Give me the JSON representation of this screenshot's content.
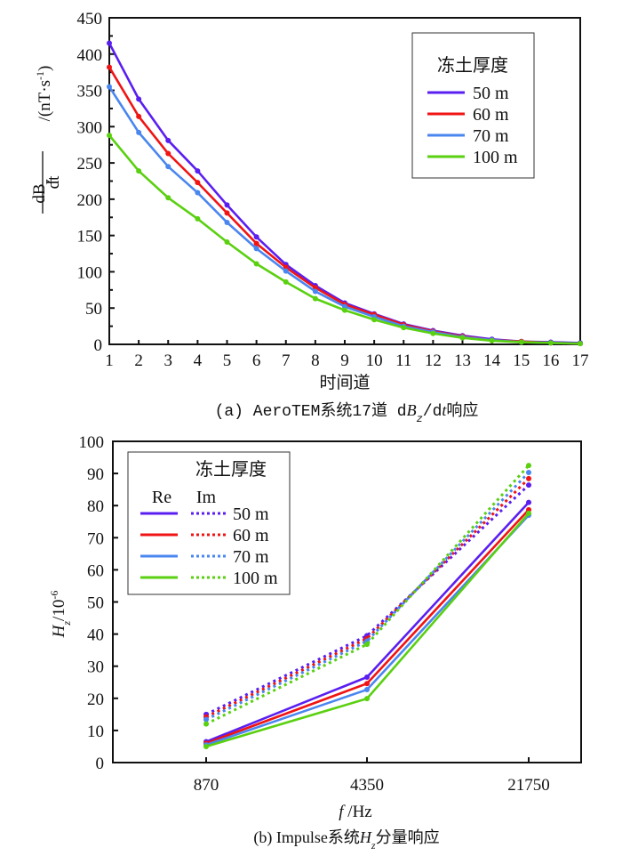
{
  "chart_data": [
    {
      "type": "line",
      "caption": "(a)  AeroTEM系统17道 dB_z/dt 响应",
      "caption_parts": {
        "prefix": "(a)  AeroTEM系统17道 d",
        "var": "B",
        "sub": "z",
        "mid": "/d",
        "var2": "t",
        "suffix": "响应"
      },
      "xlabel": "时间道",
      "ylabel": "dB_z/dt /(nT·s⁻¹)",
      "ylabel_parts": {
        "num": "dB",
        "num_sub": "z",
        "den": "dt",
        "unit": "/(nT·s",
        "unit_sup": "-1",
        "unit_end": ")"
      },
      "x": [
        1,
        2,
        3,
        4,
        5,
        6,
        7,
        8,
        9,
        10,
        11,
        12,
        13,
        14,
        15,
        16,
        17
      ],
      "xlim": [
        1,
        17
      ],
      "ylim": [
        0,
        450
      ],
      "yticks": [
        0,
        50,
        100,
        150,
        200,
        250,
        300,
        350,
        400,
        450
      ],
      "xticks": [
        1,
        2,
        3,
        4,
        5,
        6,
        7,
        8,
        9,
        10,
        11,
        12,
        13,
        14,
        15,
        16,
        17
      ],
      "grid": false,
      "legend": {
        "title": "冻土厚度",
        "position": "top-right"
      },
      "series": [
        {
          "name": "50 m",
          "color": "#5a1ff0",
          "values": [
            415,
            338,
            281,
            239,
            192,
            148,
            110,
            81,
            57,
            42,
            28,
            19,
            12,
            7,
            4,
            3,
            2
          ]
        },
        {
          "name": "60 m",
          "color": "#f01414",
          "values": [
            382,
            314,
            263,
            223,
            181,
            139,
            106,
            78,
            55,
            41,
            27,
            18,
            11,
            6,
            4,
            2,
            1
          ]
        },
        {
          "name": "70 m",
          "color": "#4a86f0",
          "values": [
            355,
            292,
            245,
            209,
            168,
            132,
            101,
            73,
            52,
            38,
            25,
            17,
            10,
            6,
            3,
            2,
            1
          ]
        },
        {
          "name": "100 m",
          "color": "#5ad010",
          "values": [
            288,
            239,
            202,
            173,
            141,
            111,
            86,
            63,
            47,
            34,
            23,
            15,
            9,
            5,
            3,
            2,
            1
          ]
        }
      ]
    },
    {
      "type": "line",
      "caption": "(b) Impulse系统H_z分量响应",
      "caption_parts": {
        "prefix": "(b) Impulse系统",
        "var": "H",
        "sub": "z",
        "suffix": "分量响应"
      },
      "xlabel": "f /Hz",
      "xlabel_parts": {
        "var": "f",
        "rest": " /Hz"
      },
      "ylabel": "H_z/10⁻⁶",
      "ylabel_parts": {
        "var": "H",
        "sub": "z",
        "rest": "/10",
        "sup": "-6"
      },
      "categories": [
        "870",
        "4350",
        "21750"
      ],
      "ylim": [
        0,
        100
      ],
      "yticks": [
        0,
        10,
        20,
        30,
        40,
        50,
        60,
        70,
        80,
        90,
        100
      ],
      "grid": false,
      "legend": {
        "title": "冻土厚度",
        "re_label": "Re",
        "im_label": "Im",
        "position": "top-left"
      },
      "series": [
        {
          "name": "50 m",
          "component": "Re",
          "color": "#5a1ff0",
          "style": "solid",
          "values": [
            6.5,
            26.6,
            81.0
          ]
        },
        {
          "name": "60 m",
          "component": "Re",
          "color": "#f01414",
          "style": "solid",
          "values": [
            6.0,
            24.6,
            78.7
          ]
        },
        {
          "name": "70 m",
          "component": "Re",
          "color": "#4a86f0",
          "style": "solid",
          "values": [
            5.5,
            22.7,
            77.0
          ]
        },
        {
          "name": "100 m",
          "component": "Re",
          "color": "#5ad010",
          "style": "solid",
          "values": [
            5.0,
            19.9,
            77.6
          ]
        },
        {
          "name": "50 m",
          "component": "Im",
          "color": "#5a1ff0",
          "style": "dotted",
          "values": [
            15.0,
            39.5,
            86.4
          ]
        },
        {
          "name": "60 m",
          "component": "Im",
          "color": "#f01414",
          "style": "dotted",
          "values": [
            14.2,
            38.6,
            88.4
          ]
        },
        {
          "name": "70 m",
          "component": "Im",
          "color": "#4a86f0",
          "style": "dotted",
          "values": [
            13.4,
            37.8,
            90.3
          ]
        },
        {
          "name": "100 m",
          "component": "Im",
          "color": "#5ad010",
          "style": "dotted",
          "values": [
            12.0,
            36.8,
            92.5
          ]
        }
      ]
    }
  ]
}
